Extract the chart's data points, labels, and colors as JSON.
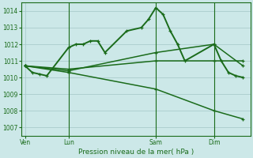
{
  "background_color": "#cce8e8",
  "grid_color": "#aacccc",
  "line_color": "#1a6b1a",
  "xlabel": "Pression niveau de la mer( hPa )",
  "ylim": [
    1006.5,
    1014.5
  ],
  "yticks": [
    1007,
    1008,
    1009,
    1010,
    1011,
    1012,
    1013,
    1014
  ],
  "xtick_labels": [
    "Ven",
    "Lun",
    "Sam",
    "Dim"
  ],
  "xtick_positions": [
    0,
    6,
    18,
    26
  ],
  "xlim": [
    -0.5,
    31
  ],
  "lines": [
    {
      "x": [
        0,
        1,
        2,
        3,
        6,
        7,
        8,
        9,
        10,
        11,
        14,
        16,
        17,
        18,
        19,
        20,
        21,
        22,
        26,
        27,
        28,
        29,
        30
      ],
      "y": [
        1010.7,
        1010.3,
        1010.2,
        1010.1,
        1011.8,
        1012.0,
        1012.0,
        1012.2,
        1012.2,
        1011.5,
        1012.8,
        1013.0,
        1013.5,
        1014.2,
        1013.8,
        1012.8,
        1012.0,
        1011.0,
        1012.0,
        1011.0,
        1010.3,
        1010.1,
        1010.0
      ],
      "linewidth": 1.4,
      "with_markers": true
    },
    {
      "x": [
        0,
        6,
        18,
        26,
        30
      ],
      "y": [
        1010.7,
        1010.5,
        1011.0,
        1011.0,
        1011.0
      ],
      "linewidth": 1.1,
      "with_markers": false
    },
    {
      "x": [
        0,
        6,
        18,
        26,
        30
      ],
      "y": [
        1010.7,
        1010.4,
        1011.5,
        1012.0,
        1010.7
      ],
      "linewidth": 1.1,
      "with_markers": false
    },
    {
      "x": [
        0,
        6,
        18,
        26,
        30
      ],
      "y": [
        1010.7,
        1010.3,
        1009.3,
        1008.0,
        1007.5
      ],
      "linewidth": 1.1,
      "with_markers": false
    }
  ],
  "vlines": [
    6,
    18,
    26
  ],
  "marker": "+",
  "markersize": 3,
  "markeredgewidth": 0.9
}
